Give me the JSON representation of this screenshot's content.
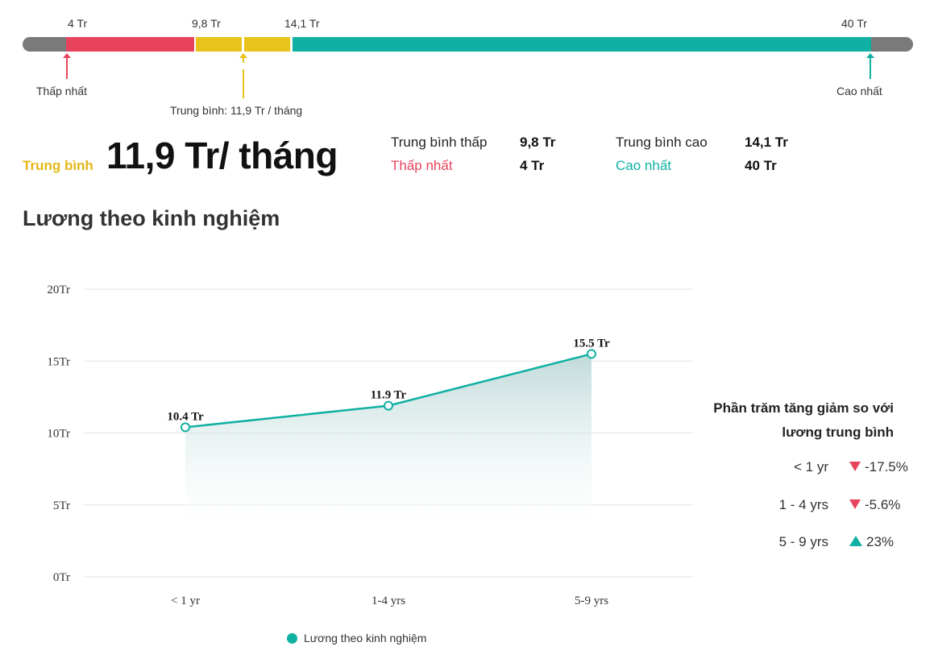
{
  "range_bar": {
    "min_label": "4 Tr",
    "low_avg_label": "9,8 Tr",
    "high_avg_label": "14,1 Tr",
    "max_label": "40 Tr",
    "lowest_marker": "Thấp nhất",
    "average_marker": "Trung bình: 11,9 Tr / tháng",
    "highest_marker": "Cao nhất",
    "colors": {
      "gray": "#7a7a7a",
      "red": "#e8435c",
      "yellow": "#e8c31b",
      "teal": "#10b0a3"
    }
  },
  "summary": {
    "average_label": "Trung bình",
    "average_value": "11,9 Tr/ tháng",
    "low_avg_label": "Trung bình thấp",
    "low_avg_value": "9,8 Tr",
    "high_avg_label": "Trung bình cao",
    "high_avg_value": "14,1 Tr",
    "lowest_label": "Thấp nhất",
    "lowest_value": "4 Tr",
    "highest_label": "Cao nhất",
    "highest_value": "40 Tr"
  },
  "section_title": "Lương theo kinh nghiệm",
  "chart_data": {
    "type": "area",
    "title": "",
    "categories": [
      "< 1 yr",
      "1-4 yrs",
      "5-9 yrs"
    ],
    "y_ticks": [
      "0Tr",
      "5Tr",
      "10Tr",
      "15Tr",
      "20Tr"
    ],
    "ylim": [
      0,
      20
    ],
    "grid": true,
    "legend_position": "bottom",
    "series": [
      {
        "name": "Lương theo kinh nghiệm",
        "values": [
          10.4,
          11.9,
          15.5
        ],
        "labels": [
          "10.4 Tr",
          "11.9 Tr",
          "15.5 Tr"
        ],
        "color": "#10b0a3"
      }
    ]
  },
  "percent_panel": {
    "title_line1": "Phần trăm tăng giảm so với",
    "title_line2": "lương trung bình",
    "rows": [
      {
        "category": "< 1 yr",
        "change": "-17.5%",
        "direction": "down"
      },
      {
        "category": "1 - 4 yrs",
        "change": "-5.6%",
        "direction": "down"
      },
      {
        "category": "5 - 9 yrs",
        "change": "23%",
        "direction": "up"
      }
    ]
  }
}
